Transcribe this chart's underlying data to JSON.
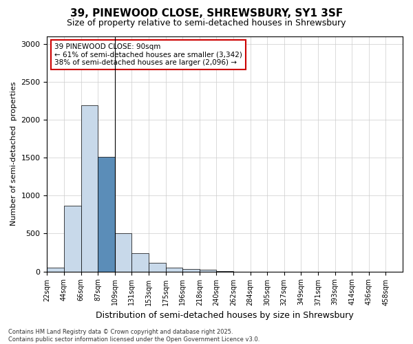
{
  "title": "39, PINEWOOD CLOSE, SHREWSBURY, SY1 3SF",
  "subtitle": "Size of property relative to semi-detached houses in Shrewsbury",
  "xlabel": "Distribution of semi-detached houses by size in Shrewsbury",
  "ylabel": "Number of semi-detached  properties",
  "footnote": "Contains HM Land Registry data © Crown copyright and database right 2025.\nContains public sector information licensed under the Open Government Licence v3.0.",
  "bins": [
    "22sqm",
    "44sqm",
    "66sqm",
    "87sqm",
    "109sqm",
    "131sqm",
    "153sqm",
    "175sqm",
    "196sqm",
    "218sqm",
    "240sqm",
    "262sqm",
    "284sqm",
    "305sqm",
    "327sqm",
    "349sqm",
    "371sqm",
    "393sqm",
    "414sqm",
    "436sqm",
    "458sqm"
  ],
  "values": [
    55,
    870,
    2190,
    1510,
    500,
    240,
    115,
    55,
    30,
    20,
    5,
    0,
    0,
    0,
    0,
    0,
    0,
    0,
    0,
    0,
    0
  ],
  "highlight_bin_index": 3,
  "annotation_title": "39 PINEWOOD CLOSE: 90sqm",
  "annotation_line1": "← 61% of semi-detached houses are smaller (3,342)",
  "annotation_line2": "38% of semi-detached houses are larger (2,096) →",
  "bar_color_normal": "#c8d9ea",
  "bar_color_highlight": "#5b8db8",
  "bar_edge_color": "#000000",
  "annotation_box_color": "#ffffff",
  "annotation_box_edge": "#cc0000",
  "ylim": [
    0,
    3100
  ],
  "yticks": [
    0,
    500,
    1000,
    1500,
    2000,
    2500,
    3000
  ]
}
